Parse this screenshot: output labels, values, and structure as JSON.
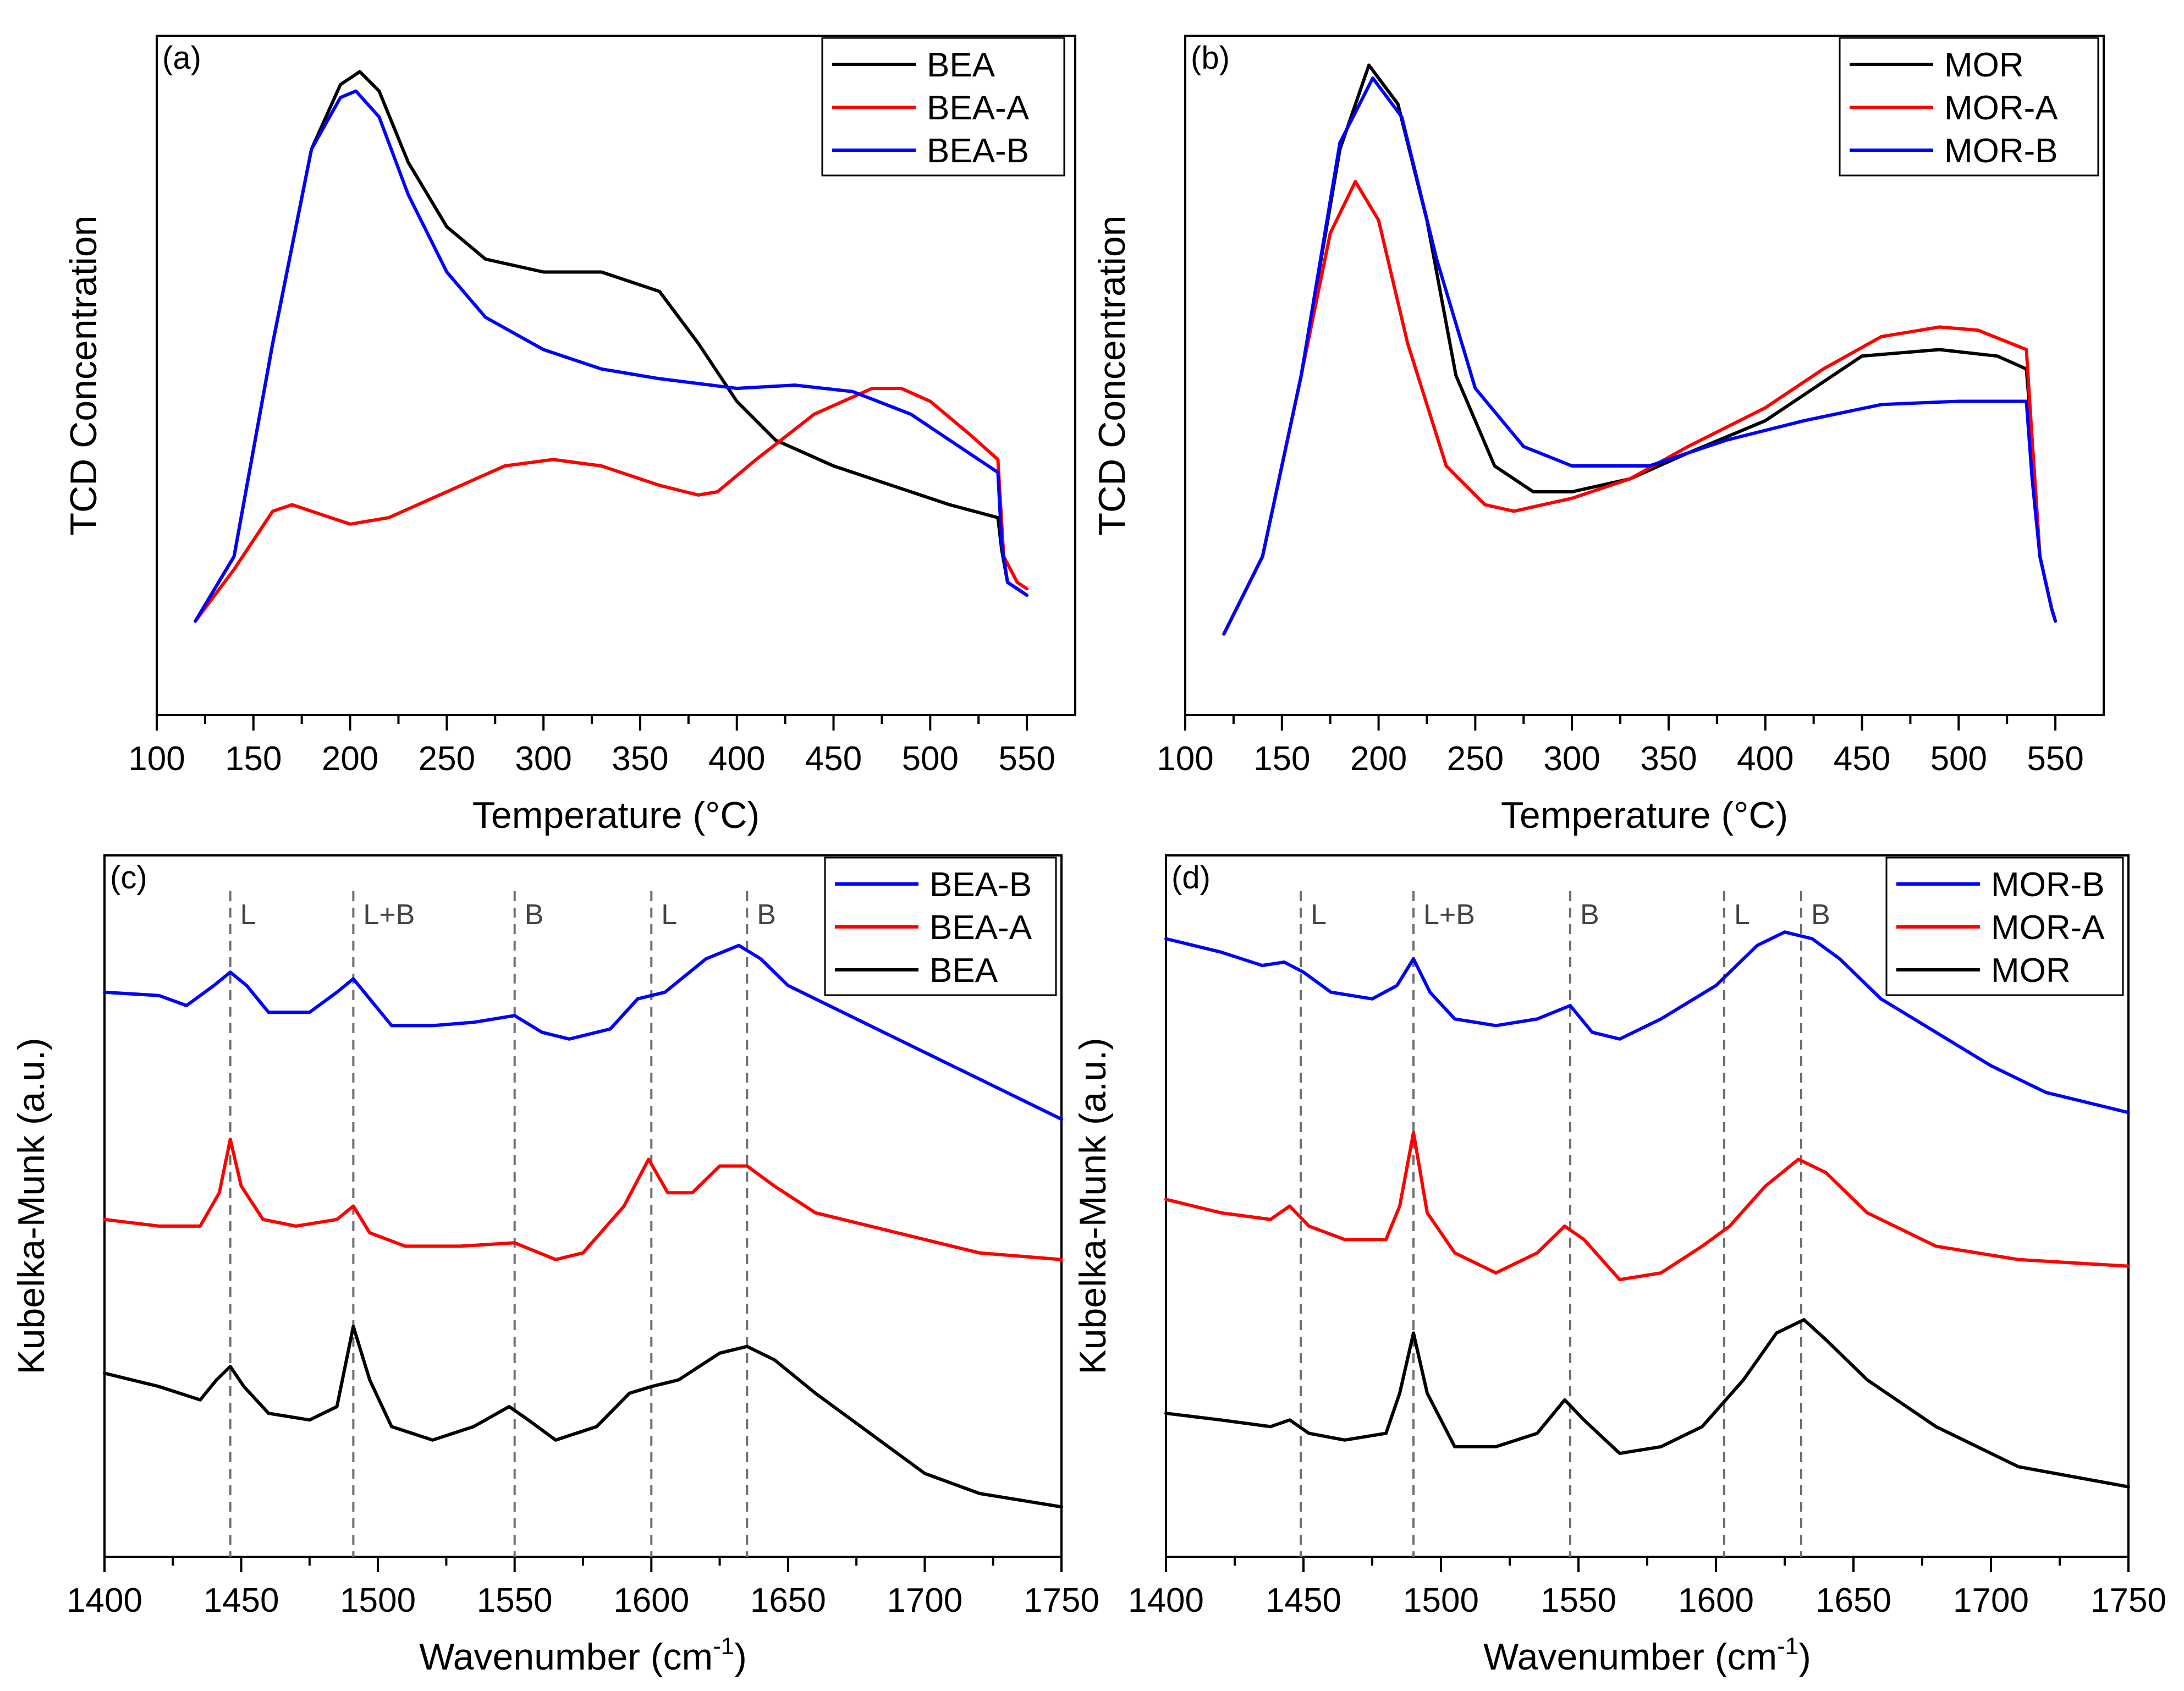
{
  "chart_data": [
    {
      "panel": "(a)",
      "type": "line",
      "title": "",
      "xlabel": "Temperature (°C)",
      "ylabel": "TCD Concentration",
      "xlim": [
        100,
        575
      ],
      "ylim": [
        0,
        100
      ],
      "xticks": [
        "100",
        "150",
        "200",
        "250",
        "300",
        "350",
        "400",
        "450",
        "500",
        "550"
      ],
      "xtick_values": [
        100,
        150,
        200,
        250,
        300,
        350,
        400,
        450,
        500,
        550
      ],
      "yticks_shown": false,
      "legend_position": "top-right",
      "series": [
        {
          "name": "BEA",
          "color": "#000000",
          "x": [
            120,
            140,
            160,
            180,
            195,
            205,
            215,
            230,
            250,
            270,
            300,
            330,
            360,
            380,
            400,
            420,
            450,
            480,
            510,
            535,
            537,
            540,
            545,
            550
          ],
          "y": [
            12,
            22,
            55,
            85,
            95,
            97,
            94,
            83,
            73,
            68,
            66,
            66,
            63,
            55,
            46,
            40,
            36,
            33,
            30,
            28,
            23,
            18,
            17,
            16
          ]
        },
        {
          "name": "BEA-A",
          "color": "#ff0000",
          "x": [
            120,
            140,
            160,
            170,
            180,
            200,
            220,
            250,
            280,
            305,
            330,
            360,
            380,
            390,
            410,
            440,
            470,
            485,
            500,
            520,
            535,
            538,
            545,
            550
          ],
          "y": [
            12,
            20,
            29,
            30,
            29,
            27,
            28,
            32,
            36,
            37,
            36,
            33,
            31.5,
            32,
            37,
            44,
            48,
            48,
            46,
            41,
            37,
            22,
            18,
            17
          ]
        },
        {
          "name": "BEA-B",
          "color": "#0000ff",
          "x": [
            120,
            140,
            160,
            180,
            195,
            203,
            215,
            230,
            250,
            270,
            300,
            330,
            360,
            400,
            430,
            460,
            490,
            510,
            535,
            537,
            540,
            545,
            550
          ],
          "y": [
            12,
            22,
            55,
            85,
            93,
            94,
            90,
            78,
            66,
            59,
            54,
            51,
            49.5,
            48,
            48.5,
            47.5,
            44,
            40,
            35,
            24,
            18,
            17,
            16
          ]
        }
      ]
    },
    {
      "panel": "(b)",
      "type": "line",
      "title": "",
      "xlabel": "Temperature (°C)",
      "ylabel": "TCD Concentration",
      "xlim": [
        100,
        575
      ],
      "ylim": [
        0,
        100
      ],
      "xticks": [
        "100",
        "150",
        "200",
        "250",
        "300",
        "350",
        "400",
        "450",
        "500",
        "550"
      ],
      "xtick_values": [
        100,
        150,
        200,
        250,
        300,
        350,
        400,
        450,
        500,
        550
      ],
      "yticks_shown": false,
      "legend_position": "top-right",
      "series": [
        {
          "name": "MOR",
          "color": "#000000",
          "x": [
            120,
            140,
            160,
            180,
            195,
            210,
            225,
            240,
            260,
            280,
            300,
            330,
            360,
            400,
            430,
            450,
            490,
            520,
            535,
            538,
            542,
            548,
            550
          ],
          "y": [
            10,
            22,
            50,
            85,
            98,
            92,
            74,
            50,
            36,
            32,
            32,
            34,
            38,
            43,
            49,
            53,
            54,
            53,
            51,
            40,
            22,
            14,
            12
          ]
        },
        {
          "name": "MOR-A",
          "color": "#ff0000",
          "x": [
            120,
            140,
            160,
            175,
            188,
            200,
            215,
            235,
            255,
            270,
            300,
            330,
            360,
            400,
            430,
            460,
            490,
            510,
            535,
            538,
            542,
            548,
            550
          ],
          "y": [
            10,
            22,
            50,
            72,
            80,
            74,
            55,
            36,
            30,
            29,
            31,
            34,
            39,
            45,
            51,
            56,
            57.5,
            57,
            54,
            40,
            22,
            14,
            12
          ]
        },
        {
          "name": "MOR-B",
          "color": "#0000ff",
          "x": [
            120,
            140,
            160,
            180,
            197,
            212,
            230,
            250,
            275,
            300,
            340,
            380,
            420,
            460,
            500,
            535,
            538,
            542,
            548,
            550
          ],
          "y": [
            10,
            22,
            50,
            86,
            96,
            90,
            68,
            48,
            39,
            36,
            36,
            40,
            43,
            45.5,
            46,
            46,
            34,
            22,
            14,
            12
          ]
        }
      ]
    },
    {
      "panel": "(c)",
      "type": "line",
      "title": "",
      "xlabel": "Wavenumber (cm",
      "xlabel_sup": "-1",
      "xlabel_tail": ")",
      "ylabel": "Kubelka-Munk (a.u.)",
      "xlim": [
        1400,
        1750
      ],
      "ylim": [
        0,
        100
      ],
      "xticks": [
        "1400",
        "1450",
        "1500",
        "1550",
        "1600",
        "1650",
        "1700",
        "1750"
      ],
      "xtick_values": [
        1400,
        1450,
        1500,
        1550,
        1600,
        1650,
        1700,
        1750
      ],
      "yticks_shown": false,
      "legend_position": "top-right",
      "reference_lines": [
        {
          "x": 1446,
          "label": "L"
        },
        {
          "x": 1491,
          "label": "L+B"
        },
        {
          "x": 1550,
          "label": "B"
        },
        {
          "x": 1600,
          "label": "L"
        },
        {
          "x": 1635,
          "label": "B"
        }
      ],
      "series": [
        {
          "name": "BEA-B",
          "color": "#0000ff",
          "x": [
            1400,
            1420,
            1430,
            1440,
            1446,
            1452,
            1460,
            1475,
            1485,
            1491,
            1497,
            1505,
            1520,
            1535,
            1550,
            1560,
            1570,
            1585,
            1595,
            1605,
            1620,
            1632,
            1640,
            1650,
            1670,
            1690,
            1710,
            1730,
            1750
          ],
          "y": [
            82,
            81.5,
            80,
            83,
            85,
            83,
            79,
            79,
            82,
            84,
            81,
            77,
            77,
            77.5,
            78.5,
            76,
            75,
            76.5,
            81,
            82,
            87,
            89,
            87,
            83,
            79,
            75,
            71,
            67,
            63
          ]
        },
        {
          "name": "BEA-A",
          "color": "#ff0000",
          "x": [
            1400,
            1420,
            1435,
            1442,
            1446,
            1450,
            1458,
            1470,
            1485,
            1491,
            1497,
            1510,
            1530,
            1550,
            1565,
            1575,
            1590,
            1599,
            1606,
            1615,
            1625,
            1635,
            1645,
            1660,
            1680,
            1700,
            1720,
            1750
          ],
          "y": [
            48,
            47,
            47,
            52,
            60,
            53,
            48,
            47,
            48,
            50,
            46,
            44,
            44,
            44.5,
            42,
            43,
            50,
            57,
            52,
            52,
            56,
            56,
            53,
            49,
            47,
            45,
            43,
            42
          ]
        },
        {
          "name": "BEA",
          "color": "#000000",
          "x": [
            1400,
            1420,
            1435,
            1441,
            1446,
            1451,
            1460,
            1475,
            1485,
            1491,
            1497,
            1505,
            1520,
            1535,
            1548,
            1555,
            1565,
            1580,
            1592,
            1600,
            1610,
            1625,
            1635,
            1645,
            1660,
            1680,
            1700,
            1720,
            1750
          ],
          "y": [
            25,
            23,
            21,
            24,
            26,
            23,
            19,
            18,
            20,
            32,
            24,
            17,
            15,
            17,
            20,
            18,
            15,
            17,
            22,
            23,
            24,
            28,
            29,
            27,
            22,
            16,
            10,
            7,
            5
          ]
        }
      ]
    },
    {
      "panel": "(d)",
      "type": "line",
      "title": "",
      "xlabel": "Wavenumber (cm",
      "xlabel_sup": "-1",
      "xlabel_tail": ")",
      "ylabel": "Kubelka-Munk (a.u.)",
      "xlim": [
        1400,
        1750
      ],
      "ylim": [
        0,
        100
      ],
      "xticks": [
        "1400",
        "1450",
        "1500",
        "1550",
        "1600",
        "1650",
        "1700",
        "1750"
      ],
      "xtick_values": [
        1400,
        1450,
        1500,
        1550,
        1600,
        1650,
        1700,
        1750
      ],
      "yticks_shown": false,
      "legend_position": "top-right",
      "reference_lines": [
        {
          "x": 1449,
          "label": "L"
        },
        {
          "x": 1490,
          "label": "L+B"
        },
        {
          "x": 1547,
          "label": "B"
        },
        {
          "x": 1603,
          "label": "L"
        },
        {
          "x": 1631,
          "label": "B"
        }
      ],
      "series": [
        {
          "name": "MOR-B",
          "color": "#0000ff",
          "x": [
            1400,
            1420,
            1435,
            1443,
            1450,
            1460,
            1475,
            1484,
            1490,
            1496,
            1505,
            1520,
            1535,
            1547,
            1555,
            1565,
            1580,
            1600,
            1615,
            1625,
            1635,
            1645,
            1660,
            1680,
            1700,
            1720,
            1750
          ],
          "y": [
            90,
            88,
            86,
            86.5,
            85,
            82,
            81,
            83,
            87,
            82,
            78,
            77,
            78,
            80,
            76,
            75,
            78,
            83,
            89,
            91,
            90,
            87,
            81,
            76,
            71,
            67,
            64
          ]
        },
        {
          "name": "MOR-A",
          "color": "#ff0000",
          "x": [
            1400,
            1420,
            1438,
            1445,
            1452,
            1465,
            1480,
            1485,
            1490,
            1495,
            1505,
            1520,
            1535,
            1545,
            1552,
            1565,
            1580,
            1595,
            1605,
            1618,
            1630,
            1640,
            1655,
            1680,
            1710,
            1750
          ],
          "y": [
            51,
            49,
            48,
            50,
            47,
            45,
            45,
            50,
            61,
            49,
            43,
            40,
            43,
            47,
            45,
            39,
            40,
            44,
            47,
            53,
            57,
            55,
            49,
            44,
            42,
            41
          ]
        },
        {
          "name": "MOR",
          "color": "#000000",
          "x": [
            1400,
            1420,
            1438,
            1445,
            1452,
            1465,
            1480,
            1485,
            1490,
            1495,
            1505,
            1520,
            1535,
            1545,
            1552,
            1565,
            1580,
            1595,
            1610,
            1622,
            1632,
            1640,
            1655,
            1680,
            1710,
            1750
          ],
          "y": [
            19,
            18,
            17,
            18,
            16,
            15,
            16,
            22,
            31,
            22,
            14,
            14,
            16,
            21,
            18,
            13,
            14,
            17,
            24,
            31,
            33,
            30,
            24,
            17,
            11,
            8
          ]
        }
      ]
    }
  ]
}
